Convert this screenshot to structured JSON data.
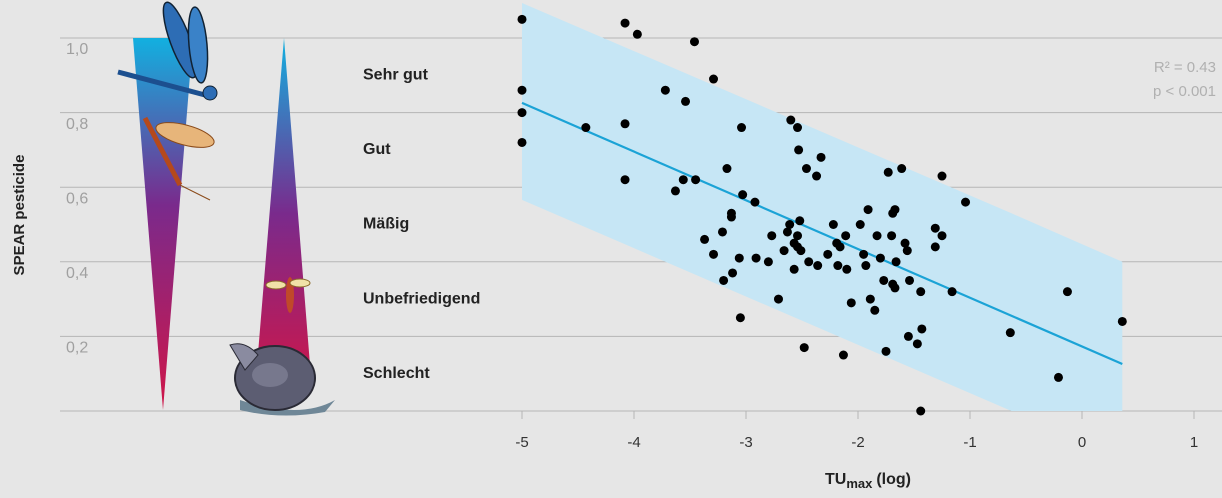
{
  "chart_data": {
    "type": "scatter",
    "y_label": "SPEAR pesticide",
    "x_label": {
      "main": "TU",
      "sub": "max",
      "rest": "(log)"
    },
    "xlim": [
      -5,
      1
    ],
    "xticks": [
      -5,
      -4,
      -3,
      -2,
      -1,
      0,
      1
    ],
    "ylim": [
      0,
      1.0
    ],
    "yticks": [
      {
        "value": 0.2,
        "label": "0,2"
      },
      {
        "value": 0.4,
        "label": "0,4"
      },
      {
        "value": 0.6,
        "label": "0,6"
      },
      {
        "value": 0.8,
        "label": "0,8"
      },
      {
        "value": 1.0,
        "label": "1,0"
      }
    ],
    "grid": true,
    "classes": [
      "Schlecht",
      "Unbefriedigend",
      "Mäßig",
      "Gut",
      "Sehr gut"
    ],
    "annotations": [
      "R² = 0.43",
      "p < 0.001"
    ],
    "point_color": "#000000",
    "fit": {
      "color": "#1ba3d6",
      "x": [
        -5,
        0.36
      ],
      "y": [
        0.826,
        0.126
      ]
    },
    "band": {
      "color": "#c6e6f5",
      "x": [
        -5,
        -0.63,
        0.36
      ],
      "upper": [
        1.094,
        0.53,
        0.4
      ],
      "lower": [
        0.566,
        0,
        0
      ]
    },
    "points": {
      "x": [
        -5,
        -5,
        -5,
        -5,
        -4.08,
        -3.97,
        -3.46,
        -3.29,
        -3.72,
        -3.54,
        -4.43,
        -4.08,
        -3.04,
        -2.6,
        -2.54,
        -2.53,
        -2.33,
        -2.46,
        -2.37,
        -3.17,
        -4.08,
        -3.56,
        -3.45,
        -3.63,
        -3.03,
        -2.92,
        -1.73,
        -1.61,
        -1.25,
        -1.04,
        -3.13,
        -3.13,
        -2.52,
        -2.61,
        -2.63,
        -2.54,
        -2.22,
        -2.11,
        -1.98,
        -1.91,
        -1.67,
        -1.69,
        -1.83,
        -1.7,
        -1.31,
        -1.25,
        -1.31,
        -1.58,
        -1.56,
        -3.37,
        -3.21,
        -3.29,
        -3.06,
        -2.91,
        -2.8,
        -2.77,
        -2.66,
        -2.57,
        -2.51,
        -2.54,
        -2.44,
        -2.36,
        -2.57,
        -2.27,
        -2.19,
        -2.16,
        -2.1,
        -2.18,
        -1.95,
        -1.8,
        -1.66,
        -1.93,
        -1.77,
        -1.69,
        -1.67,
        -1.54,
        -1.44,
        -1.16,
        -3.12,
        -3.2,
        -2.71,
        -2.06,
        -1.89,
        -1.85,
        -3.05,
        -1.43,
        -1.55,
        -1.47,
        -0.64,
        -0.13,
        0.36,
        -0.21,
        -2.48,
        -2.13,
        -1.75,
        -1.44
      ],
      "y": [
        1.05,
        0.86,
        0.8,
        0.72,
        1.04,
        1.01,
        0.99,
        0.89,
        0.86,
        0.83,
        0.76,
        0.77,
        0.76,
        0.78,
        0.76,
        0.7,
        0.68,
        0.65,
        0.63,
        0.65,
        0.62,
        0.62,
        0.62,
        0.59,
        0.58,
        0.56,
        0.64,
        0.65,
        0.63,
        0.56,
        0.53,
        0.52,
        0.51,
        0.5,
        0.48,
        0.47,
        0.5,
        0.47,
        0.5,
        0.54,
        0.54,
        0.53,
        0.47,
        0.47,
        0.49,
        0.47,
        0.44,
        0.45,
        0.43,
        0.46,
        0.48,
        0.42,
        0.41,
        0.41,
        0.4,
        0.47,
        0.43,
        0.45,
        0.43,
        0.44,
        0.4,
        0.39,
        0.38,
        0.42,
        0.45,
        0.44,
        0.38,
        0.39,
        0.42,
        0.41,
        0.4,
        0.39,
        0.35,
        0.34,
        0.33,
        0.35,
        0.32,
        0.32,
        0.37,
        0.35,
        0.3,
        0.29,
        0.3,
        0.27,
        0.25,
        0.22,
        0.2,
        0.18,
        0.21,
        0.32,
        0.24,
        0.09,
        0.17,
        0.15,
        0.16,
        0
      ]
    }
  }
}
